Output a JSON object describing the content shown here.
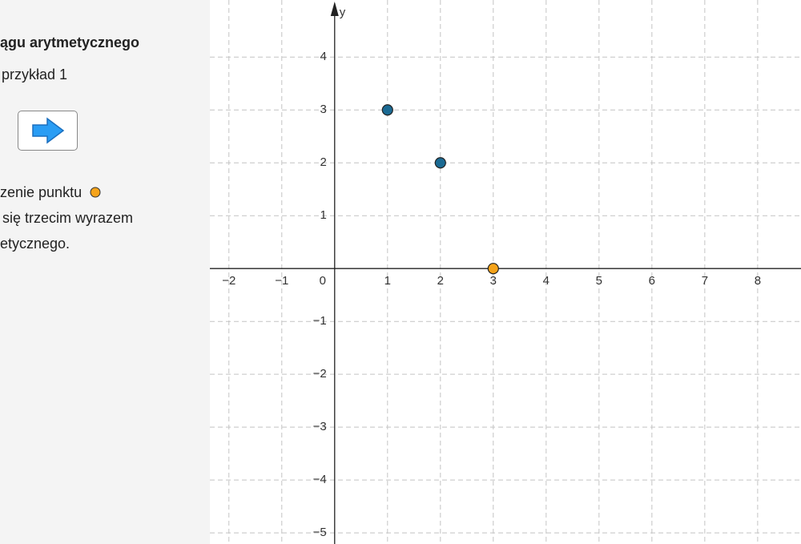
{
  "sidebar": {
    "title": "ągu arytmetycznego",
    "example": "przykład 1",
    "text_lines": [
      "zenie punktu",
      "się trzecim wyrazem",
      "etycznego."
    ]
  },
  "graph": {
    "y_axis_label": "y",
    "origin_label": "0",
    "xlim": [
      -2.36,
      8.82
    ],
    "ylim": [
      -5.21,
      5.08
    ],
    "xticks": [
      {
        "value": -2,
        "label": "−2"
      },
      {
        "value": -1,
        "label": "−1"
      },
      1,
      2,
      3,
      4,
      5,
      6,
      7,
      8
    ],
    "yticks": [
      {
        "value": -5,
        "label": "−5"
      },
      {
        "value": -4,
        "label": "−4"
      },
      {
        "value": -3,
        "label": "−3"
      },
      {
        "value": -2,
        "label": "−2"
      },
      {
        "value": -1,
        "label": "−1"
      },
      1,
      2,
      3,
      4
    ],
    "points": [
      {
        "x": 1,
        "y": 3,
        "color": "#1b6a93"
      },
      {
        "x": 2,
        "y": 2,
        "color": "#1b6a93"
      },
      {
        "x": 3,
        "y": 0,
        "color": "#f5a31a"
      }
    ]
  }
}
